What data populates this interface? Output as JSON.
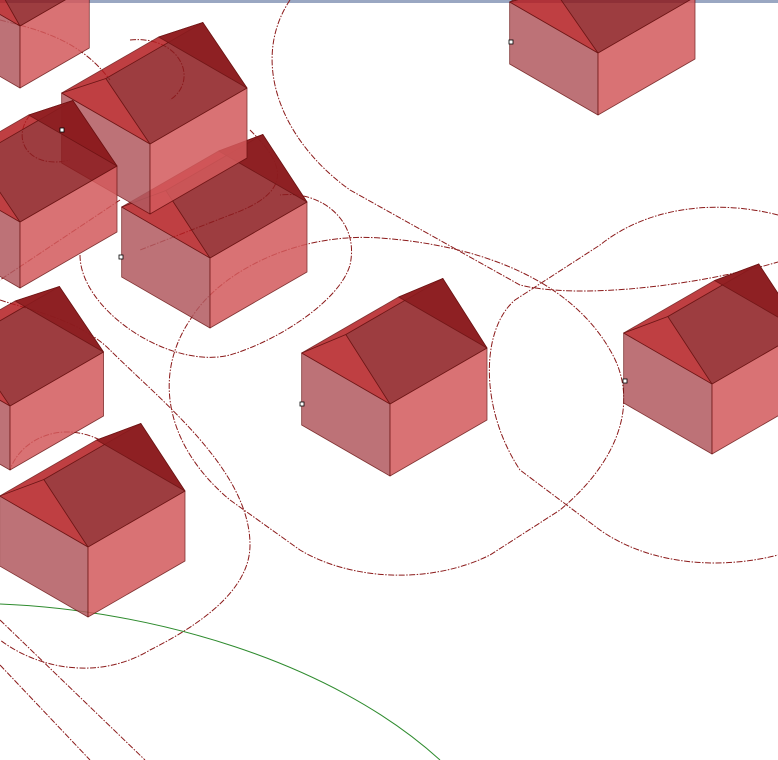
{
  "viewport": {
    "background": "#ffffff",
    "top_edge_color": "#9aa7c2"
  },
  "colors": {
    "roof_left": "#b41e22",
    "roof_right": "#8c1c1f",
    "wall_left": "#b25a60",
    "wall_right": "#d35a5c",
    "edge": "#6b1010",
    "offset_curve": "#8b1a1a",
    "road_curve": "#2e8b2e",
    "grip": "#000000"
  },
  "scene": {
    "house_count": 10,
    "offset_curve_style": "dash-dot",
    "road_curve_style": "solid"
  }
}
